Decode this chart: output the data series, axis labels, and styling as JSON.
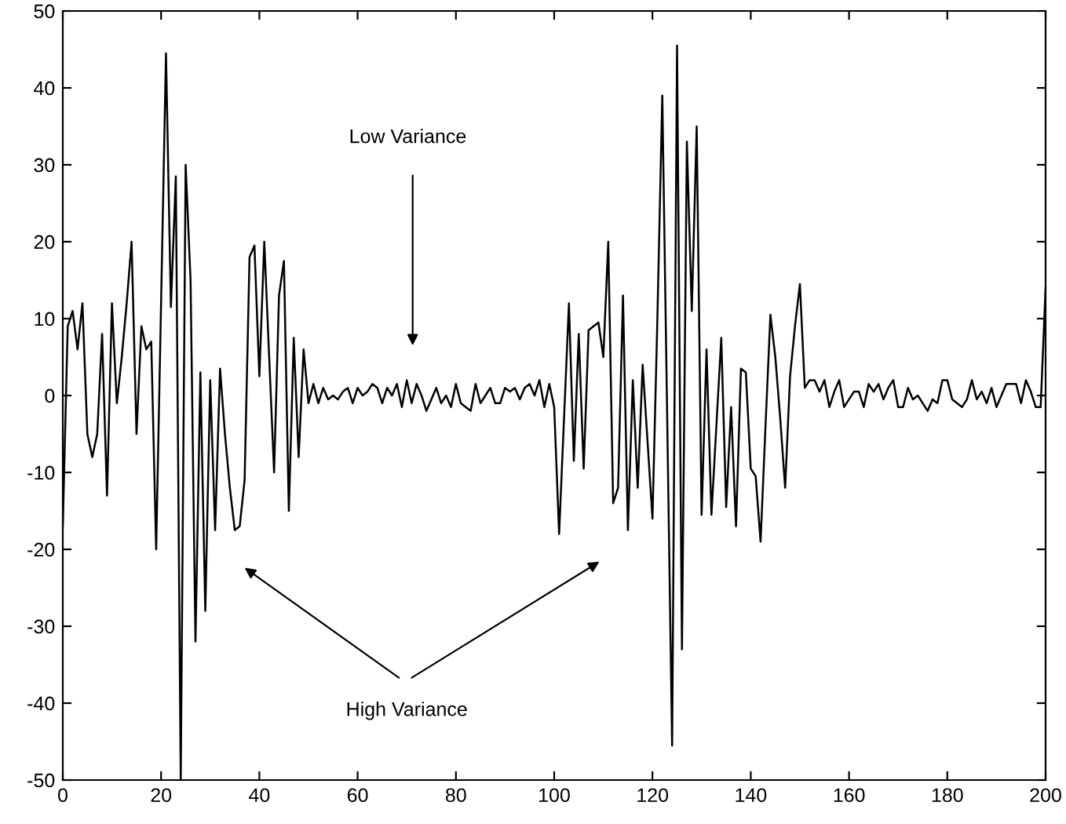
{
  "chart_data": {
    "type": "line",
    "x": [
      0,
      1,
      2,
      3,
      4,
      5,
      6,
      7,
      8,
      9,
      10,
      11,
      12,
      13,
      14,
      15,
      16,
      17,
      18,
      19,
      20,
      21,
      22,
      23,
      24,
      25,
      26,
      27,
      28,
      29,
      30,
      31,
      32,
      33,
      34,
      35,
      36,
      37,
      38,
      39,
      40,
      41,
      42,
      43,
      44,
      45,
      46,
      47,
      48,
      49,
      50,
      51,
      52,
      53,
      54,
      55,
      56,
      57,
      58,
      59,
      60,
      61,
      62,
      63,
      64,
      65,
      66,
      67,
      68,
      69,
      70,
      71,
      72,
      73,
      74,
      75,
      76,
      77,
      78,
      79,
      80,
      81,
      82,
      83,
      84,
      85,
      86,
      87,
      88,
      89,
      90,
      91,
      92,
      93,
      94,
      95,
      96,
      97,
      98,
      99,
      100,
      101,
      102,
      103,
      104,
      105,
      106,
      107,
      108,
      109,
      110,
      111,
      112,
      113,
      114,
      115,
      116,
      117,
      118,
      119,
      120,
      121,
      122,
      123,
      124,
      125,
      126,
      127,
      128,
      129,
      130,
      131,
      132,
      133,
      134,
      135,
      136,
      137,
      138,
      139,
      140,
      141,
      142,
      143,
      144,
      145,
      146,
      147,
      148,
      149,
      150,
      151,
      152,
      153,
      154,
      155,
      156,
      157,
      158,
      159,
      160,
      161,
      162,
      163,
      164,
      165,
      166,
      167,
      168,
      169,
      170,
      171,
      172,
      173,
      174,
      175,
      176,
      177,
      178,
      179,
      180,
      181,
      182,
      183,
      184,
      185,
      186,
      187,
      188,
      189,
      190,
      191,
      192,
      193,
      194,
      195,
      196,
      197,
      198,
      199,
      200
    ],
    "series": [
      {
        "color": "#000000",
        "values": [
          -17,
          9,
          11,
          6,
          12,
          -5,
          -8,
          -5,
          8,
          -13,
          12,
          -1,
          5,
          12,
          20,
          -5,
          9,
          6,
          7,
          -20,
          12,
          44.5,
          11.5,
          28.5,
          -50,
          30,
          15,
          -32,
          3,
          -28,
          2,
          -17.5,
          3.5,
          -5,
          -12,
          -17.5,
          -17,
          -11,
          18,
          19.5,
          2.5,
          20,
          5,
          -10,
          13,
          17.5,
          -15,
          7.5,
          -8,
          6,
          -1,
          1.5,
          -1,
          1,
          -0.5,
          0,
          -0.5,
          0.5,
          1,
          -1,
          1,
          0,
          0.5,
          1.5,
          1,
          -1,
          1,
          0,
          1.5,
          -1.5,
          2,
          -1,
          1.5,
          0,
          -2,
          -0.5,
          1,
          -1,
          0,
          -1.5,
          1.5,
          -1,
          -1.5,
          -2,
          1.5,
          -1,
          0,
          1,
          -1,
          -1,
          1,
          0.5,
          1,
          -0.5,
          1,
          1.5,
          0,
          2,
          -1.5,
          1.5,
          -1.5,
          -18,
          -3,
          12,
          -8.5,
          8,
          -9.5,
          8.5,
          9,
          9.5,
          5,
          20,
          -14,
          -12,
          13,
          -17.5,
          2,
          -12,
          4,
          -6,
          -16,
          10,
          39,
          -3,
          -45.5,
          45.5,
          -33,
          33,
          11,
          35,
          -15.5,
          6,
          -15.5,
          -4,
          7.5,
          -14.5,
          -1.5,
          -17,
          3.5,
          3,
          -9.5,
          -10.5,
          -19,
          -4,
          10.5,
          5,
          -3,
          -12,
          2.5,
          9,
          14.5,
          1,
          2,
          2,
          0.5,
          2,
          -1.5,
          0.5,
          2,
          -1.5,
          -0.5,
          0.5,
          0.5,
          -1.5,
          1.5,
          0.5,
          1.5,
          -0.5,
          1,
          2,
          -1.5,
          -1.5,
          1,
          -0.5,
          0,
          -1,
          -2,
          -0.5,
          -1,
          2,
          2,
          -0.5,
          -1,
          -1.5,
          -0.5,
          2,
          -0.5,
          0.5,
          -1,
          1,
          -1.5,
          0,
          1.5,
          1.5,
          1.5,
          -1,
          2,
          0.5,
          -1.5,
          -1.5,
          14
        ]
      }
    ],
    "xlim": [
      0,
      200
    ],
    "ylim": [
      -50,
      50
    ],
    "xticks": [
      0,
      20,
      40,
      60,
      80,
      100,
      120,
      140,
      160,
      180,
      200
    ],
    "yticks": [
      -50,
      -40,
      -30,
      -20,
      -10,
      0,
      10,
      20,
      30,
      40,
      50
    ],
    "grid": false,
    "marker": "none",
    "line_style": "solid",
    "annotations": [
      "Low Variance",
      "High Variance"
    ]
  }
}
